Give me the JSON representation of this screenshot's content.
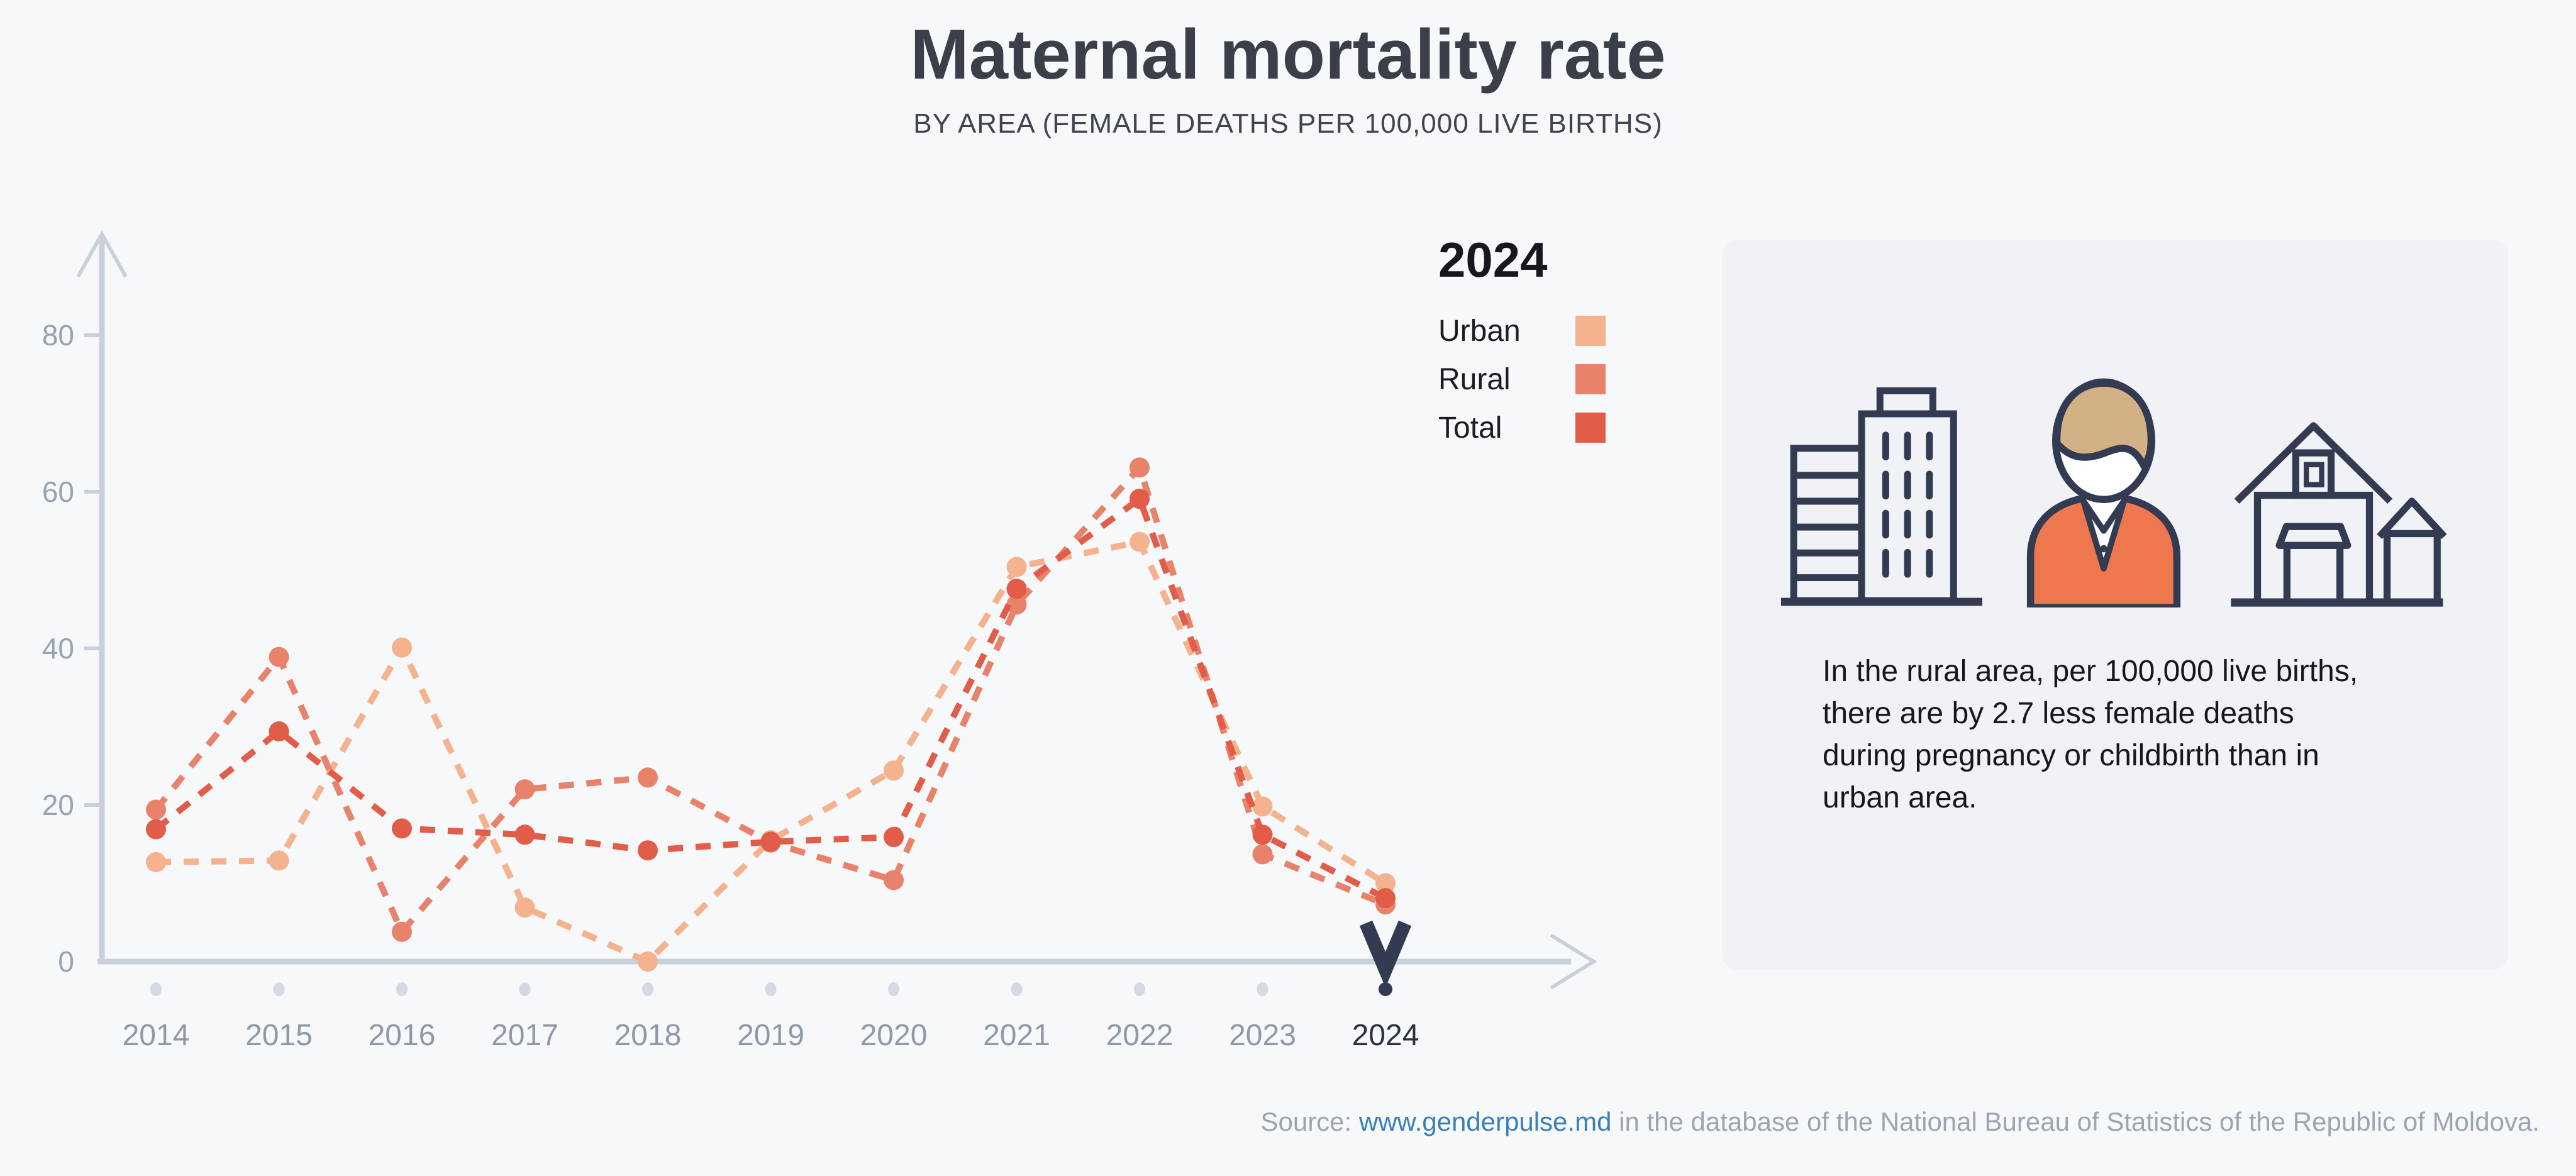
{
  "header": {
    "title": "Maternal mortality rate",
    "subtitle": "BY AREA (FEMALE DEATHS PER 100,000 LIVE BIRTHS)"
  },
  "legend": {
    "heading": "2024",
    "items": [
      {
        "label": "Urban",
        "color": "#F4B28E"
      },
      {
        "label": "Rural",
        "color": "#E8826B"
      },
      {
        "label": "Total",
        "color": "#E15C49"
      }
    ]
  },
  "chart_data": {
    "type": "line",
    "x": [
      2014,
      2015,
      2016,
      2017,
      2018,
      2019,
      2020,
      2021,
      2022,
      2023,
      2024
    ],
    "series": [
      {
        "name": "Urban",
        "color": "#F4B28E",
        "values": [
          12.7,
          12.9,
          40.1,
          6.9,
          0,
          15.5,
          24.4,
          50.4,
          53.6,
          19.8,
          10.0
        ]
      },
      {
        "name": "Rural",
        "color": "#E8826B",
        "values": [
          19.4,
          38.9,
          3.8,
          22.0,
          23.5,
          15.2,
          10.4,
          45.6,
          63.1,
          13.7,
          7.3
        ]
      },
      {
        "name": "Total",
        "color": "#E15C49",
        "values": [
          16.9,
          29.4,
          17.0,
          16.2,
          14.2,
          15.3,
          15.9,
          47.6,
          59.1,
          16.2,
          8.1
        ]
      }
    ],
    "title": "Maternal mortality rate",
    "xlabel": "",
    "ylabel": "",
    "yticks": [
      0,
      20,
      40,
      60,
      80
    ],
    "ylim": [
      0,
      88
    ],
    "grid": false,
    "line_style": "dashed",
    "legend_position": "right",
    "highlight_year": 2024
  },
  "card": {
    "icons": [
      "city-buildings-icon",
      "woman-icon",
      "rural-houses-icon"
    ],
    "text": "In the rural area, per 100,000 live births,\nthere are by 2.7 less female deaths\nduring pregnancy or childbirth than in\nurban area."
  },
  "source": {
    "prefix": "Source: ",
    "link": "www.genderpulse.md",
    "suffix": " in the database of the National Bureau of Statistics of the Republic of Moldova."
  },
  "colors": {
    "background": "#F7F8F9",
    "card_background": "#F0F2F6",
    "axis": "#C8D1DB",
    "tick_dot": "#D3DAE3",
    "year_label": "#8E99A8",
    "highlight": "#333B52",
    "link": "#3B7FB8"
  }
}
